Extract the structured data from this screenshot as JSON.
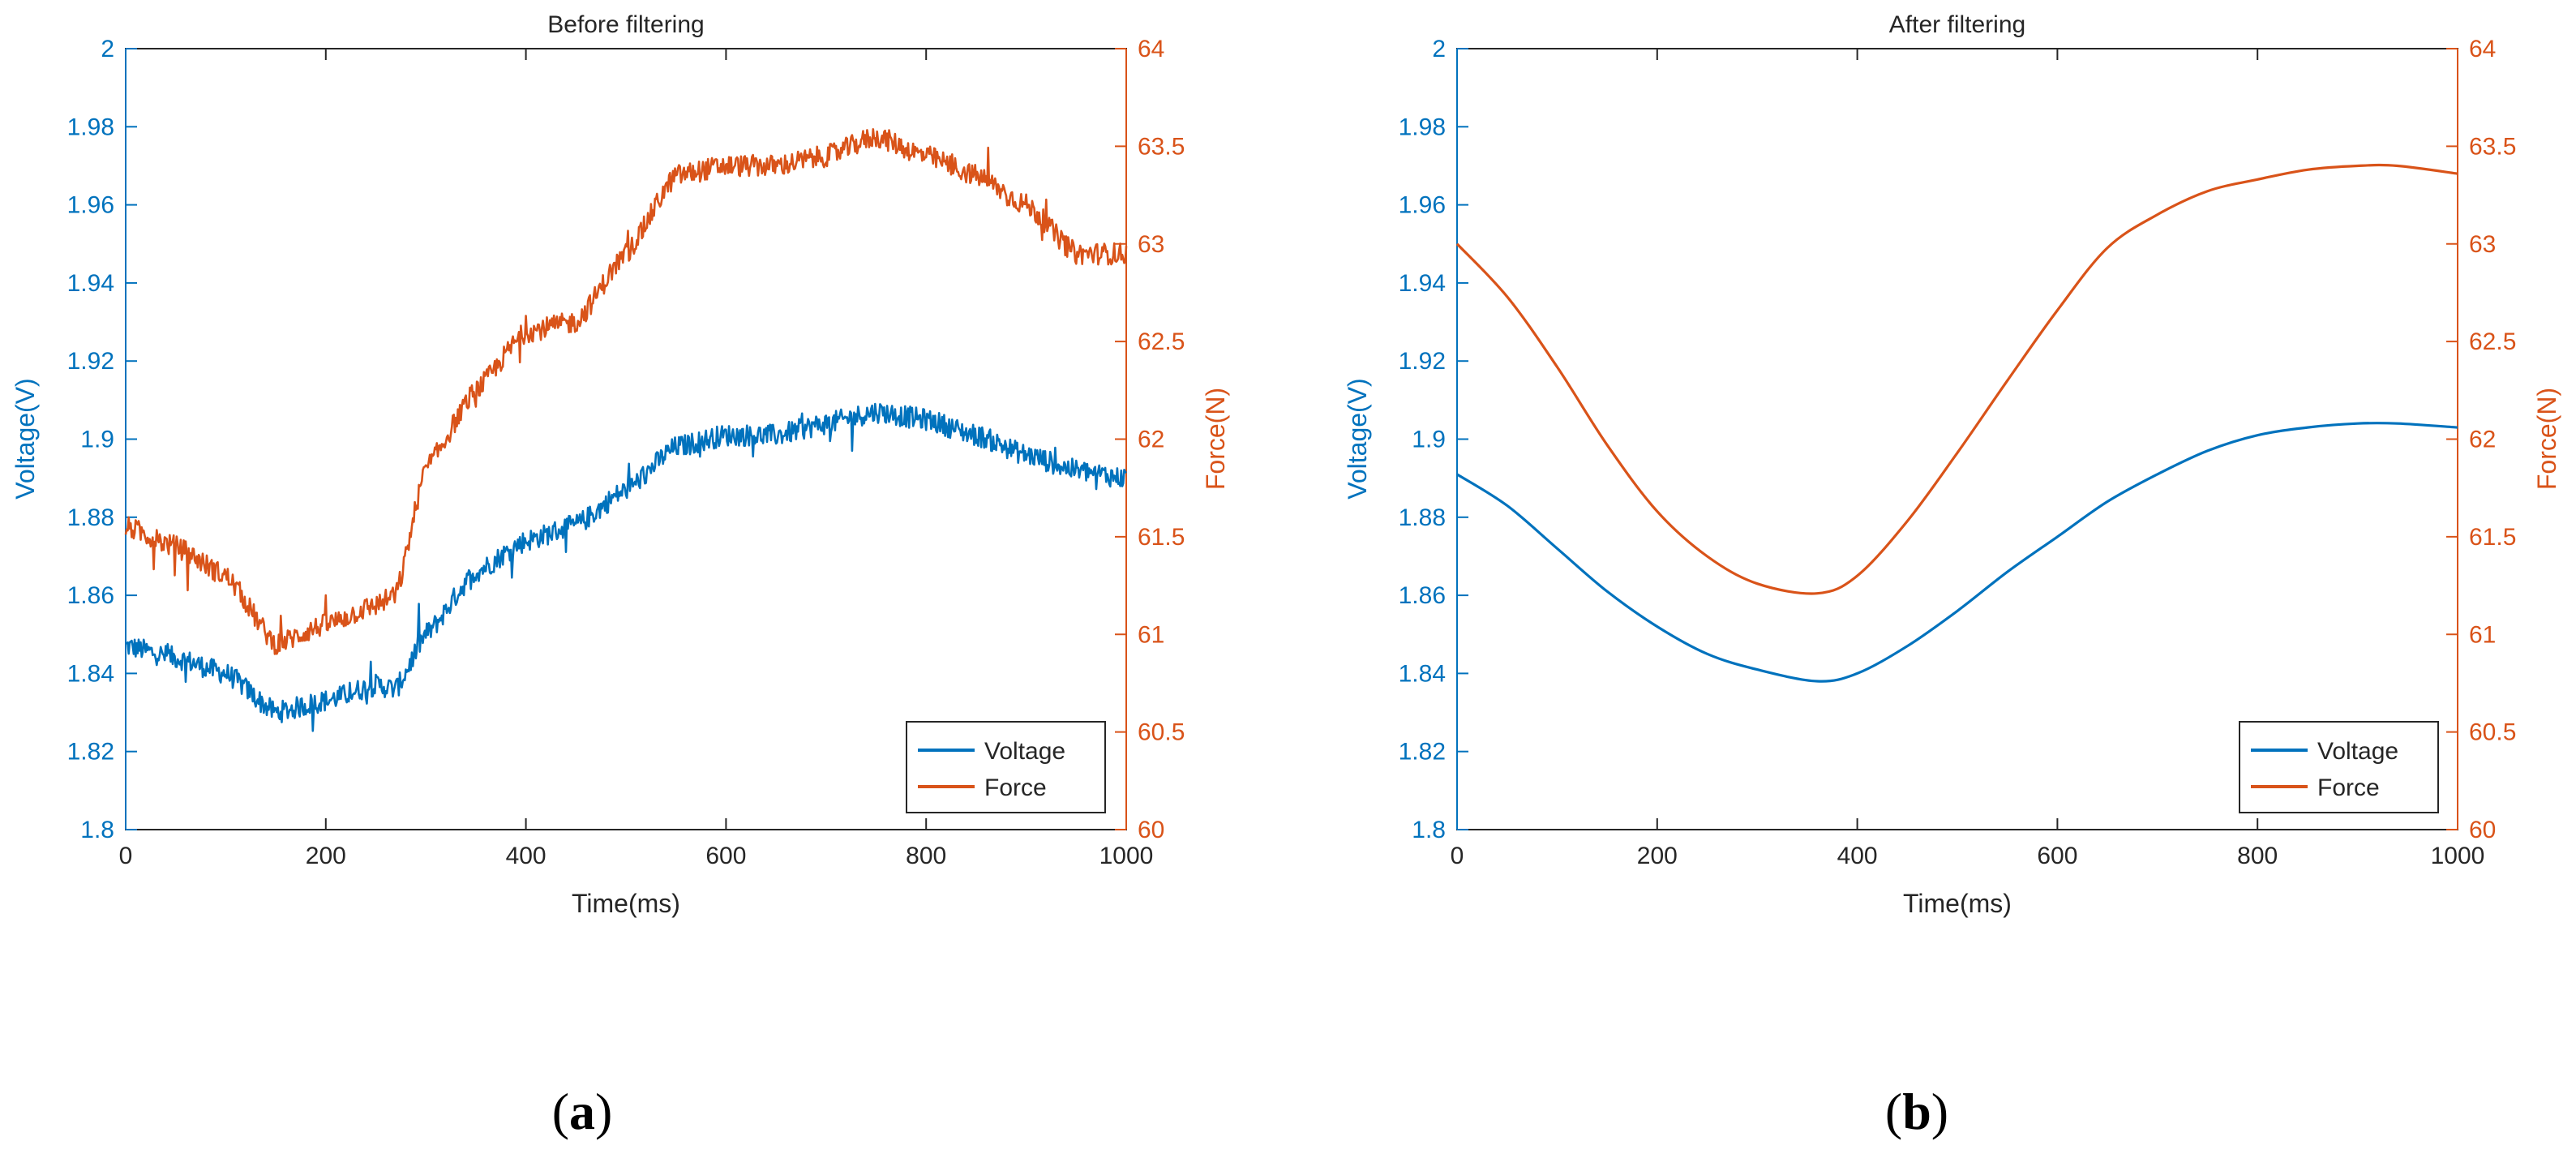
{
  "colors": {
    "voltage": "#0072BD",
    "force": "#D95319",
    "axis": "#262626"
  },
  "chart_data": [
    {
      "type": "line",
      "title": "Before filtering",
      "subfigure_label": [
        "(",
        "a",
        ")"
      ],
      "xlabel": "Time(ms)",
      "ylabel_left": "Voltage(V)",
      "ylabel_right": "Force(N)",
      "xlim": [
        0,
        1000
      ],
      "ylim_left": [
        1.8,
        2.0
      ],
      "ylim_right": [
        60,
        64
      ],
      "xticks": [
        0,
        200,
        400,
        600,
        800,
        1000
      ],
      "xtick_labels": [
        "0",
        "200",
        "400",
        "600",
        "800",
        "1000"
      ],
      "yticks_left": [
        1.8,
        1.82,
        1.84,
        1.86,
        1.88,
        1.9,
        1.92,
        1.94,
        1.96,
        1.98,
        2.0
      ],
      "ytick_labels_left": [
        "1.8",
        "1.82",
        "1.84",
        "1.86",
        "1.88",
        "1.9",
        "1.92",
        "1.94",
        "1.96",
        "1.98",
        "2"
      ],
      "yticks_right": [
        60,
        60.5,
        61,
        61.5,
        62,
        62.5,
        63,
        63.5,
        64
      ],
      "ytick_labels_right": [
        "60",
        "60.5",
        "61",
        "61.5",
        "62",
        "62.5",
        "63",
        "63.5",
        "64"
      ],
      "legend": {
        "position": "bottom-right",
        "entries": [
          "Voltage",
          "Force"
        ]
      },
      "noisy": true,
      "series": [
        {
          "name": "Voltage",
          "axis": "left",
          "x": [
            0,
            50,
            100,
            150,
            200,
            250,
            270,
            300,
            350,
            400,
            450,
            500,
            550,
            600,
            650,
            700,
            750,
            800,
            850,
            900,
            950,
            1000
          ],
          "values": [
            1.847,
            1.844,
            1.84,
            1.83,
            1.833,
            1.837,
            1.836,
            1.85,
            1.866,
            1.874,
            1.878,
            1.887,
            1.898,
            1.901,
            1.901,
            1.904,
            1.907,
            1.905,
            1.901,
            1.896,
            1.892,
            1.89
          ]
        },
        {
          "name": "Force",
          "axis": "right",
          "x": [
            0,
            50,
            100,
            150,
            200,
            250,
            270,
            300,
            350,
            400,
            450,
            500,
            550,
            600,
            650,
            700,
            750,
            800,
            850,
            900,
            950,
            1000
          ],
          "values": [
            61.55,
            61.45,
            61.3,
            60.95,
            61.05,
            61.15,
            61.2,
            61.85,
            62.25,
            62.55,
            62.6,
            62.95,
            63.35,
            63.4,
            63.4,
            63.45,
            63.55,
            63.45,
            63.35,
            63.2,
            62.95,
            62.95
          ]
        }
      ]
    },
    {
      "type": "line",
      "title": "After filtering",
      "subfigure_label": [
        "(",
        "b",
        ")"
      ],
      "xlabel": "Time(ms)",
      "ylabel_left": "Voltage(V)",
      "ylabel_right": "Force(N)",
      "xlim": [
        0,
        1000
      ],
      "ylim_left": [
        1.8,
        2.0
      ],
      "ylim_right": [
        60,
        64
      ],
      "xticks": [
        0,
        200,
        400,
        600,
        800,
        1000
      ],
      "xtick_labels": [
        "0",
        "200",
        "400",
        "600",
        "800",
        "1000"
      ],
      "yticks_left": [
        1.8,
        1.82,
        1.84,
        1.86,
        1.88,
        1.9,
        1.92,
        1.94,
        1.96,
        1.98,
        2.0
      ],
      "ytick_labels_left": [
        "1.8",
        "1.82",
        "1.84",
        "1.86",
        "1.88",
        "1.9",
        "1.92",
        "1.94",
        "1.96",
        "1.98",
        "2"
      ],
      "yticks_right": [
        60,
        60.5,
        61,
        61.5,
        62,
        62.5,
        63,
        63.5,
        64
      ],
      "ytick_labels_right": [
        "60",
        "60.5",
        "61",
        "61.5",
        "62",
        "62.5",
        "63",
        "63.5",
        "64"
      ],
      "legend": {
        "position": "bottom-right",
        "entries": [
          "Voltage",
          "Force"
        ]
      },
      "noisy": false,
      "series": [
        {
          "name": "Voltage",
          "axis": "left",
          "x": [
            0,
            50,
            100,
            150,
            200,
            250,
            300,
            360,
            400,
            450,
            500,
            550,
            600,
            650,
            700,
            750,
            800,
            850,
            900,
            940,
            1000
          ],
          "values": [
            1.891,
            1.883,
            1.872,
            1.861,
            1.852,
            1.845,
            1.841,
            1.838,
            1.84,
            1.847,
            1.856,
            1.866,
            1.875,
            1.884,
            1.891,
            1.897,
            1.901,
            1.903,
            1.904,
            1.904,
            1.903
          ]
        },
        {
          "name": "Force",
          "axis": "right",
          "x": [
            0,
            50,
            100,
            150,
            200,
            250,
            300,
            360,
            400,
            450,
            500,
            550,
            600,
            650,
            700,
            750,
            800,
            850,
            900,
            940,
            1000
          ],
          "values": [
            63.0,
            62.73,
            62.37,
            61.97,
            61.63,
            61.4,
            61.26,
            61.21,
            61.3,
            61.58,
            61.93,
            62.3,
            62.66,
            62.98,
            63.15,
            63.27,
            63.33,
            63.38,
            63.4,
            63.4,
            63.36
          ]
        }
      ]
    }
  ]
}
